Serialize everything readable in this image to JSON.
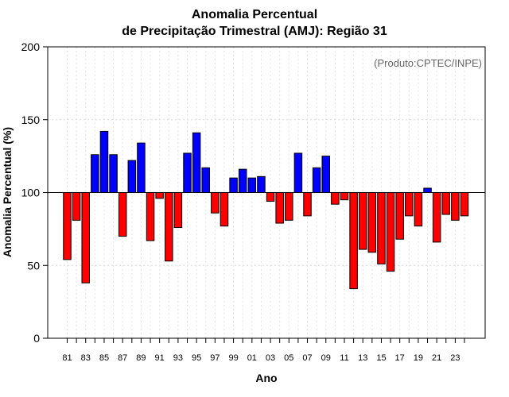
{
  "chart_data": {
    "type": "bar",
    "title_line1": "Anomalia Percentual",
    "title_line2": "de Precipitação Trimestral (AMJ): Região 31",
    "credit": "(Produto:CPTEC/INPE)",
    "xlabel": "Ano",
    "ylabel": "Anomalia Percentual (%)",
    "ylim": [
      0,
      200
    ],
    "yticks": [
      0,
      50,
      100,
      150,
      200
    ],
    "baseline": 100,
    "categories": [
      "81",
      "82",
      "83",
      "84",
      "85",
      "86",
      "87",
      "88",
      "89",
      "90",
      "91",
      "92",
      "93",
      "94",
      "95",
      "96",
      "97",
      "98",
      "99",
      "00",
      "01",
      "02",
      "03",
      "04",
      "05",
      "06",
      "07",
      "08",
      "09",
      "10",
      "11",
      "12",
      "13",
      "14",
      "15",
      "16",
      "17",
      "18",
      "19",
      "20",
      "21",
      "22",
      "23",
      "24"
    ],
    "xtick_labels": [
      "81",
      "83",
      "85",
      "87",
      "89",
      "91",
      "93",
      "95",
      "97",
      "99",
      "01",
      "03",
      "05",
      "07",
      "09",
      "11",
      "13",
      "15",
      "17",
      "19",
      "21",
      "23"
    ],
    "values": [
      54,
      81,
      38,
      126,
      142,
      126,
      70,
      122,
      134,
      67,
      96,
      53,
      76,
      127,
      141,
      117,
      86,
      77,
      110,
      116,
      110,
      111,
      94,
      79,
      81,
      127,
      84,
      117,
      125,
      92,
      95,
      34,
      61,
      59,
      51,
      46,
      68,
      84,
      77,
      103,
      66,
      85,
      81,
      84
    ],
    "colors": {
      "above": "#0000ff",
      "below": "#ff0000"
    }
  }
}
